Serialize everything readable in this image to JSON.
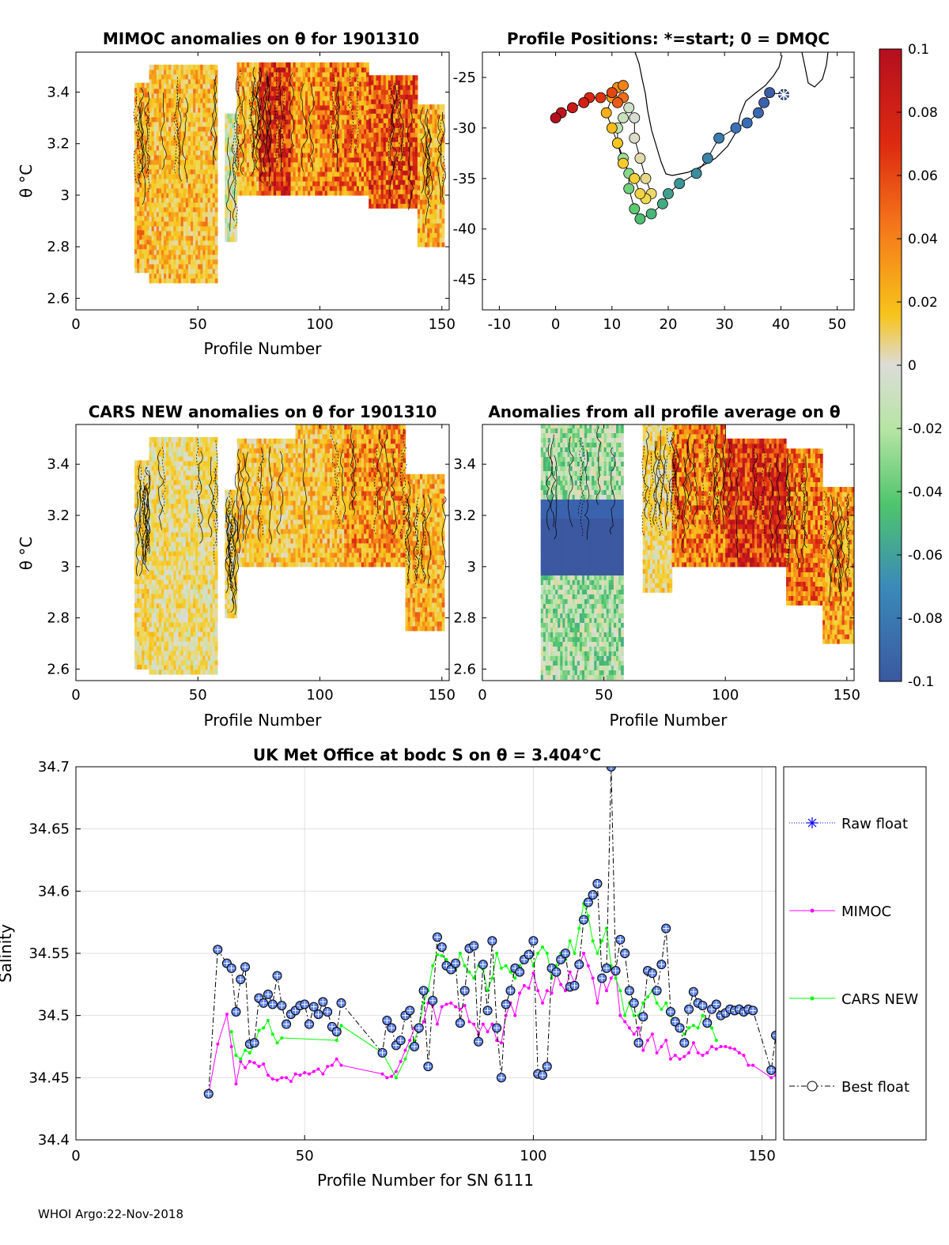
{
  "footer": "WHOI Argo:22-Nov-2018",
  "colorbar": {
    "ticks": [
      "0.1",
      "0.08",
      "0.06",
      "0.04",
      "0.02",
      "0",
      "-0.02",
      "-0.04",
      "-0.06",
      "-0.08",
      "-0.1"
    ],
    "range": [
      -0.1,
      0.1
    ]
  },
  "panels": {
    "mimoc": {
      "title": "MIMOC anomalies on θ  for 1901310",
      "ylabel": "θ °C",
      "xlabel": "Profile Number",
      "xticks": [
        "0",
        "50",
        "100",
        "150"
      ],
      "yticks": [
        "3.4",
        "3.2",
        "3",
        "2.8",
        "2.6"
      ]
    },
    "positions": {
      "title": "Profile Positions: *=start; 0 = DMQC",
      "xticks": [
        "-10",
        "0",
        "10",
        "20",
        "30",
        "40",
        "50"
      ],
      "yticks": [
        "-25",
        "-30",
        "-35",
        "-40",
        "-45"
      ]
    },
    "cars": {
      "title": "CARS NEW anomalies on θ for 1901310",
      "ylabel": "θ °C",
      "xlabel": "Profile Number",
      "xticks": [
        "0",
        "50",
        "100",
        "150"
      ],
      "yticks": [
        "3.4",
        "3.2",
        "3",
        "2.8",
        "2.6"
      ]
    },
    "allavg": {
      "title": "Anomalies from all profile average on θ",
      "xlabel": "Profile Number",
      "xticks": [
        "0",
        "50",
        "100",
        "150"
      ],
      "yticks": [
        "3.4",
        "3.2",
        "3",
        "2.8",
        "2.6"
      ]
    }
  },
  "chart_data": [
    {
      "id": "positions",
      "type": "scatter",
      "title": "Profile Positions: *=start; 0 = DMQC",
      "xlim": [
        -13,
        53
      ],
      "ylim": [
        -48,
        -22.5
      ],
      "x": [
        40.5,
        38,
        37,
        36,
        34,
        32,
        29,
        27,
        25,
        22,
        20,
        19,
        17,
        15,
        14,
        13,
        13,
        12,
        11,
        11,
        12,
        13,
        14,
        14,
        15,
        16,
        17,
        16,
        15,
        14,
        12,
        11,
        10,
        9,
        10,
        11,
        12,
        12,
        11,
        10,
        8,
        6,
        5,
        3,
        1,
        0
      ],
      "y": [
        -26.7,
        -26.5,
        -27.5,
        -28.5,
        -29.5,
        -30,
        -31,
        -33,
        -34.5,
        -35.5,
        -36.5,
        -37.5,
        -38.5,
        -39,
        -38,
        -36,
        -34.5,
        -33,
        -31.5,
        -30,
        -29,
        -28,
        -29,
        -31,
        -33,
        -35,
        -36.5,
        -37,
        -36.5,
        -35,
        -33.5,
        -31.5,
        -30,
        -28.5,
        -27,
        -26,
        -25.8,
        -27,
        -27.5,
        -26.5,
        -27,
        -27,
        -27.5,
        -28,
        -28.5,
        -29
      ]
    },
    {
      "id": "salinity",
      "type": "line",
      "title": "UK Met Office at bodc S on θ = 3.404°C",
      "xlabel": "Profile Number for SN 6111",
      "ylabel": "Salinity",
      "xlim": [
        0,
        153
      ],
      "ylim": [
        34.4,
        34.7
      ],
      "xticks": [
        "0",
        "50",
        "100",
        "150"
      ],
      "yticks": [
        "34.4",
        "34.45",
        "34.5",
        "34.55",
        "34.6",
        "34.65",
        "34.7"
      ],
      "series": [
        {
          "name": "Raw float",
          "color": "#0000ff",
          "x": [
            29,
            31,
            33,
            34,
            35,
            36,
            37,
            38,
            39,
            40,
            41,
            42,
            43,
            44,
            45,
            46,
            47,
            48,
            49,
            50,
            51,
            52,
            53,
            54,
            55,
            56,
            57,
            58,
            67,
            68,
            69,
            70,
            71,
            72,
            73,
            74,
            75,
            76,
            77,
            78,
            79,
            80,
            81,
            82,
            83,
            84,
            85,
            86,
            87,
            88,
            89,
            90,
            91,
            92,
            93,
            94,
            95,
            96,
            97,
            98,
            99,
            100,
            101,
            102,
            103,
            104,
            105,
            106,
            107,
            108,
            109,
            110,
            111,
            112,
            113,
            114,
            115,
            116,
            117,
            118,
            119,
            120,
            121,
            122,
            123,
            124,
            125,
            126,
            127,
            128,
            129,
            130,
            131,
            132,
            133,
            134,
            135,
            136,
            137,
            138,
            139,
            140,
            141,
            142,
            143,
            144,
            145,
            146,
            147,
            148,
            152,
            153
          ],
          "y": [
            34.437,
            34.553,
            34.542,
            34.538,
            34.503,
            34.529,
            34.539,
            34.477,
            34.478,
            34.514,
            34.51,
            34.517,
            34.509,
            34.532,
            34.508,
            34.493,
            34.501,
            34.504,
            34.508,
            34.509,
            34.493,
            34.507,
            34.501,
            34.511,
            34.503,
            34.491,
            34.487,
            34.51,
            34.47,
            34.496,
            34.49,
            34.476,
            34.48,
            34.5,
            34.504,
            34.475,
            34.49,
            34.52,
            34.459,
            34.512,
            34.563,
            34.555,
            34.54,
            34.537,
            34.542,
            34.494,
            34.52,
            34.554,
            34.556,
            34.479,
            34.541,
            34.504,
            34.56,
            34.49,
            34.45,
            34.509,
            34.52,
            34.538,
            34.535,
            34.545,
            34.549,
            34.56,
            34.453,
            34.452,
            34.459,
            34.538,
            34.535,
            34.545,
            34.55,
            34.523,
            34.524,
            34.541,
            34.577,
            34.591,
            34.597,
            34.606,
            34.53,
            34.538,
            34.7,
            34.536,
            34.561,
            34.55,
            34.52,
            34.51,
            34.478,
            34.499,
            34.536,
            34.534,
            34.52,
            34.541,
            34.57,
            34.503,
            34.495,
            34.49,
            34.478,
            34.505,
            34.519,
            34.51,
            34.508,
            34.494,
            34.505,
            34.509,
            34.5,
            34.502,
            34.505,
            34.504,
            34.505,
            34.503,
            34.505,
            34.504,
            34.456,
            34.484
          ]
        },
        {
          "name": "MIMOC",
          "color": "#ff00ff",
          "x": [
            29,
            31,
            33,
            34,
            35,
            36,
            37,
            38,
            39,
            40,
            41,
            42,
            43,
            44,
            45,
            46,
            47,
            48,
            49,
            50,
            51,
            52,
            53,
            54,
            55,
            56,
            57,
            58,
            67,
            68,
            69,
            70,
            71,
            72,
            73,
            74,
            75,
            76,
            77,
            78,
            79,
            80,
            81,
            82,
            83,
            84,
            85,
            86,
            87,
            88,
            89,
            90,
            91,
            92,
            93,
            94,
            95,
            96,
            97,
            98,
            99,
            100,
            101,
            102,
            103,
            104,
            105,
            106,
            107,
            108,
            109,
            110,
            111,
            112,
            113,
            114,
            115,
            116,
            117,
            118,
            119,
            120,
            121,
            122,
            123,
            124,
            125,
            126,
            127,
            128,
            129,
            130,
            131,
            132,
            133,
            134,
            135,
            136,
            137,
            138,
            139,
            140,
            141,
            142,
            143,
            144,
            145,
            146,
            147,
            148,
            152,
            153
          ],
          "y": [
            34.437,
            34.477,
            34.501,
            34.475,
            34.445,
            34.463,
            34.458,
            34.463,
            34.462,
            34.459,
            34.461,
            34.452,
            34.449,
            34.448,
            34.45,
            34.45,
            34.447,
            34.453,
            34.452,
            34.454,
            34.453,
            34.455,
            34.457,
            34.453,
            34.459,
            34.46,
            34.465,
            34.46,
            34.453,
            34.45,
            34.451,
            34.455,
            34.463,
            34.472,
            34.48,
            34.49,
            34.487,
            34.495,
            34.51,
            34.508,
            34.493,
            34.507,
            34.509,
            34.51,
            34.507,
            34.505,
            34.508,
            34.495,
            34.493,
            34.485,
            34.493,
            34.487,
            34.493,
            34.48,
            34.478,
            34.5,
            34.51,
            34.5,
            34.518,
            34.524,
            34.522,
            34.534,
            34.52,
            34.51,
            34.52,
            34.518,
            34.534,
            34.525,
            34.52,
            34.535,
            34.526,
            34.54,
            34.55,
            34.54,
            34.53,
            34.51,
            34.531,
            34.52,
            34.53,
            34.535,
            34.5,
            34.495,
            34.49,
            34.485,
            34.49,
            34.472,
            34.48,
            34.485,
            34.47,
            34.475,
            34.48,
            34.465,
            34.468,
            34.465,
            34.467,
            34.47,
            34.478,
            34.47,
            34.468,
            34.47,
            34.475,
            34.473,
            34.475,
            34.475,
            34.474,
            34.473,
            34.47,
            34.468,
            34.46,
            34.46,
            34.45,
            34.452
          ]
        },
        {
          "name": "CARS NEW",
          "color": "#00ff00",
          "x": [
            34,
            35,
            36,
            37,
            38,
            39,
            40,
            41,
            42,
            43,
            44,
            45,
            57,
            58,
            67,
            70,
            72,
            73,
            74,
            75,
            76,
            77,
            78,
            79,
            80,
            81,
            82,
            83,
            84,
            85,
            86,
            87,
            88,
            89,
            90,
            91,
            92,
            93,
            94,
            95,
            96,
            97,
            98,
            99,
            100,
            101,
            102,
            103,
            104,
            105,
            106,
            107,
            108,
            109,
            110,
            111,
            112,
            113,
            114,
            115,
            116,
            117,
            118,
            119,
            120,
            121,
            122,
            123,
            124,
            125,
            126,
            127,
            128,
            129,
            130,
            131,
            132,
            133,
            134,
            135,
            136,
            137,
            138,
            139,
            140
          ],
          "y": [
            34.487,
            34.468,
            34.465,
            34.472,
            34.47,
            34.476,
            34.488,
            34.49,
            34.496,
            34.485,
            34.478,
            34.482,
            34.48,
            34.492,
            34.47,
            34.45,
            34.465,
            34.475,
            34.48,
            34.49,
            34.51,
            34.52,
            34.54,
            34.549,
            34.548,
            34.545,
            34.54,
            34.537,
            34.55,
            34.54,
            34.535,
            34.53,
            34.54,
            34.537,
            34.52,
            34.53,
            34.55,
            34.538,
            34.54,
            34.535,
            34.53,
            34.54,
            34.545,
            34.55,
            34.54,
            34.55,
            34.555,
            34.55,
            34.53,
            34.54,
            34.55,
            34.545,
            34.56,
            34.55,
            34.57,
            34.59,
            34.58,
            34.56,
            34.55,
            34.56,
            34.57,
            34.54,
            34.53,
            34.52,
            34.5,
            34.51,
            34.5,
            34.5,
            34.51,
            34.515,
            34.52,
            34.51,
            34.505,
            34.51,
            34.5,
            34.495,
            34.49,
            34.485,
            34.49,
            34.492,
            34.49,
            34.5,
            34.495,
            34.49,
            34.48
          ]
        },
        {
          "name": "Best float",
          "color": "#000000",
          "x": [
            29,
            31,
            33,
            34,
            35,
            36,
            37,
            38,
            39,
            40,
            41,
            42,
            43,
            44,
            45,
            46,
            47,
            48,
            49,
            50,
            51,
            52,
            53,
            54,
            55,
            56,
            57,
            58,
            67,
            68,
            69,
            70,
            71,
            72,
            73,
            74,
            75,
            76,
            77,
            78,
            79,
            80,
            81,
            82,
            83,
            84,
            85,
            86,
            87,
            88,
            89,
            90,
            91,
            92,
            93,
            94,
            95,
            96,
            97,
            98,
            99,
            100,
            101,
            102,
            103,
            104,
            105,
            106,
            107,
            108,
            109,
            110,
            111,
            112,
            113,
            114,
            115,
            116,
            117,
            118,
            119,
            120,
            121,
            122,
            123,
            124,
            125,
            126,
            127,
            128,
            129,
            130,
            131,
            132,
            133,
            134,
            135,
            136,
            137,
            138,
            139,
            140,
            141,
            142,
            143,
            144,
            145,
            146,
            147,
            148,
            152,
            153
          ],
          "y": [
            34.437,
            34.553,
            34.542,
            34.538,
            34.503,
            34.529,
            34.539,
            34.477,
            34.478,
            34.514,
            34.51,
            34.517,
            34.509,
            34.532,
            34.508,
            34.493,
            34.501,
            34.504,
            34.508,
            34.509,
            34.493,
            34.507,
            34.501,
            34.511,
            34.503,
            34.491,
            34.487,
            34.51,
            34.47,
            34.496,
            34.49,
            34.476,
            34.48,
            34.5,
            34.504,
            34.475,
            34.49,
            34.52,
            34.459,
            34.512,
            34.563,
            34.555,
            34.54,
            34.537,
            34.542,
            34.494,
            34.52,
            34.554,
            34.556,
            34.479,
            34.541,
            34.504,
            34.56,
            34.49,
            34.45,
            34.509,
            34.52,
            34.538,
            34.535,
            34.545,
            34.549,
            34.56,
            34.453,
            34.452,
            34.459,
            34.538,
            34.535,
            34.545,
            34.55,
            34.523,
            34.524,
            34.541,
            34.577,
            34.591,
            34.597,
            34.606,
            34.53,
            34.538,
            34.7,
            34.536,
            34.561,
            34.55,
            34.52,
            34.51,
            34.478,
            34.499,
            34.536,
            34.534,
            34.52,
            34.541,
            34.57,
            34.503,
            34.495,
            34.49,
            34.478,
            34.505,
            34.519,
            34.51,
            34.508,
            34.494,
            34.505,
            34.509,
            34.5,
            34.502,
            34.505,
            34.504,
            34.505,
            34.503,
            34.505,
            34.504,
            34.456,
            34.484
          ]
        }
      ]
    }
  ]
}
